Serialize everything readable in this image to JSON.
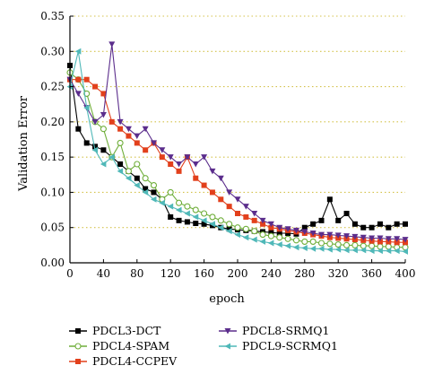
{
  "chart_data": {
    "type": "line",
    "title": "",
    "xlabel": "epoch",
    "ylabel": "Validation Error",
    "xlim": [
      0,
      400
    ],
    "ylim": [
      0,
      0.35
    ],
    "xticks": [
      0,
      40,
      80,
      120,
      160,
      200,
      240,
      280,
      320,
      360,
      400
    ],
    "yticks": [
      0.0,
      0.05,
      0.1,
      0.15,
      0.2,
      0.25,
      0.3,
      0.35
    ],
    "xtick_labels": [
      "0",
      "40",
      "80",
      "120",
      "160",
      "200",
      "240",
      "280",
      "320",
      "360",
      "400"
    ],
    "ytick_labels": [
      "0.00",
      "0.05",
      "0.10",
      "0.15",
      "0.20",
      "0.25",
      "0.30",
      "0.35"
    ],
    "grid": {
      "horizontal": true,
      "style": "dotted",
      "color": "#d4c24a"
    },
    "legend_position": "bottom",
    "series": [
      {
        "name": "PDCL3-DCT",
        "color": "#000000",
        "marker": "square-filled",
        "x": [
          0,
          10,
          20,
          30,
          40,
          50,
          60,
          70,
          80,
          90,
          100,
          110,
          120,
          130,
          140,
          150,
          160,
          170,
          180,
          190,
          200,
          210,
          220,
          230,
          240,
          250,
          260,
          270,
          280,
          290,
          300,
          310,
          320,
          330,
          340,
          350,
          360,
          370,
          380,
          390,
          400
        ],
        "y": [
          0.28,
          0.19,
          0.17,
          0.165,
          0.16,
          0.15,
          0.14,
          0.13,
          0.12,
          0.105,
          0.1,
          0.09,
          0.065,
          0.06,
          0.058,
          0.056,
          0.055,
          0.053,
          0.05,
          0.048,
          0.047,
          0.046,
          0.045,
          0.044,
          0.043,
          0.042,
          0.042,
          0.041,
          0.05,
          0.055,
          0.06,
          0.09,
          0.06,
          0.07,
          0.055,
          0.05,
          0.05,
          0.055,
          0.05,
          0.055,
          0.055
        ]
      },
      {
        "name": "PDCL4-SPAM",
        "color": "#6fae3a",
        "marker": "circle-open",
        "x": [
          0,
          10,
          20,
          30,
          40,
          50,
          60,
          70,
          80,
          90,
          100,
          110,
          120,
          130,
          140,
          150,
          160,
          170,
          180,
          190,
          200,
          210,
          220,
          230,
          240,
          250,
          260,
          270,
          280,
          290,
          300,
          310,
          320,
          330,
          340,
          350,
          360,
          370,
          380,
          390,
          400
        ],
        "y": [
          0.27,
          0.26,
          0.24,
          0.2,
          0.19,
          0.15,
          0.17,
          0.13,
          0.14,
          0.12,
          0.11,
          0.09,
          0.1,
          0.085,
          0.08,
          0.075,
          0.07,
          0.065,
          0.06,
          0.055,
          0.05,
          0.048,
          0.045,
          0.04,
          0.038,
          0.036,
          0.034,
          0.032,
          0.03,
          0.03,
          0.028,
          0.027,
          0.026,
          0.025,
          0.025,
          0.024,
          0.024,
          0.023,
          0.023,
          0.022,
          0.022
        ]
      },
      {
        "name": "PDCL4-CCPEV",
        "color": "#e2401c",
        "marker": "square-filled",
        "x": [
          0,
          10,
          20,
          30,
          40,
          50,
          60,
          70,
          80,
          90,
          100,
          110,
          120,
          130,
          140,
          150,
          160,
          170,
          180,
          190,
          200,
          210,
          220,
          230,
          240,
          250,
          260,
          270,
          280,
          290,
          300,
          310,
          320,
          330,
          340,
          350,
          360,
          370,
          380,
          390,
          400
        ],
        "y": [
          0.26,
          0.26,
          0.26,
          0.25,
          0.24,
          0.2,
          0.19,
          0.18,
          0.17,
          0.16,
          0.17,
          0.15,
          0.14,
          0.13,
          0.15,
          0.12,
          0.11,
          0.1,
          0.09,
          0.08,
          0.07,
          0.065,
          0.06,
          0.055,
          0.05,
          0.048,
          0.046,
          0.044,
          0.042,
          0.04,
          0.038,
          0.036,
          0.035,
          0.034,
          0.033,
          0.032,
          0.031,
          0.03,
          0.03,
          0.029,
          0.029
        ]
      },
      {
        "name": "PDCL8-SRMQ1",
        "color": "#5b2d8c",
        "marker": "triangle-down-filled",
        "x": [
          0,
          10,
          20,
          30,
          40,
          50,
          60,
          70,
          80,
          90,
          100,
          110,
          120,
          130,
          140,
          150,
          160,
          170,
          180,
          190,
          200,
          210,
          220,
          230,
          240,
          250,
          260,
          270,
          280,
          290,
          300,
          310,
          320,
          330,
          340,
          350,
          360,
          370,
          380,
          390,
          400
        ],
        "y": [
          0.26,
          0.24,
          0.22,
          0.2,
          0.21,
          0.31,
          0.2,
          0.19,
          0.18,
          0.19,
          0.17,
          0.16,
          0.15,
          0.14,
          0.15,
          0.14,
          0.15,
          0.13,
          0.12,
          0.1,
          0.09,
          0.08,
          0.07,
          0.06,
          0.055,
          0.05,
          0.048,
          0.046,
          0.044,
          0.042,
          0.04,
          0.04,
          0.039,
          0.038,
          0.037,
          0.036,
          0.035,
          0.035,
          0.034,
          0.034,
          0.033
        ]
      },
      {
        "name": "PDCL9-SCRMQ1",
        "color": "#4fb8b8",
        "marker": "triangle-left-filled",
        "x": [
          0,
          10,
          20,
          30,
          40,
          50,
          60,
          70,
          80,
          90,
          100,
          110,
          120,
          130,
          140,
          150,
          160,
          170,
          180,
          190,
          200,
          210,
          220,
          230,
          240,
          250,
          260,
          270,
          280,
          290,
          300,
          310,
          320,
          330,
          340,
          350,
          360,
          370,
          380,
          390,
          400
        ],
        "y": [
          0.25,
          0.3,
          0.22,
          0.16,
          0.14,
          0.15,
          0.13,
          0.12,
          0.11,
          0.1,
          0.09,
          0.085,
          0.08,
          0.075,
          0.07,
          0.065,
          0.06,
          0.055,
          0.05,
          0.045,
          0.04,
          0.036,
          0.033,
          0.03,
          0.028,
          0.026,
          0.024,
          0.022,
          0.021,
          0.02,
          0.02,
          0.019,
          0.019,
          0.018,
          0.018,
          0.018,
          0.017,
          0.017,
          0.017,
          0.017,
          0.016
        ]
      }
    ]
  }
}
